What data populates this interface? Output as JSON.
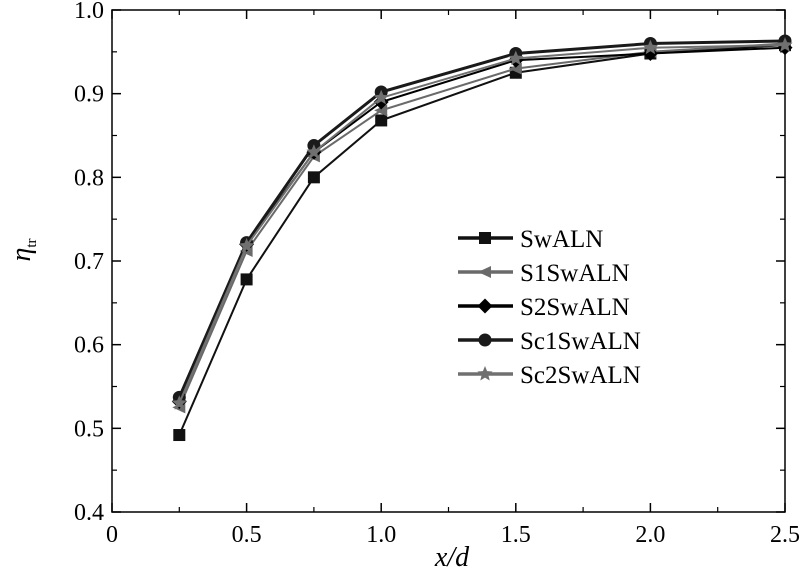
{
  "chart_data": {
    "type": "line",
    "title": "",
    "xlabel": "x/d",
    "ylabel": "η",
    "ylabel_subscript": "tr",
    "xlim": [
      0,
      2.5
    ],
    "ylim": [
      0.4,
      1.0
    ],
    "x_ticks": [
      0,
      0.5,
      1.0,
      1.5,
      2.0,
      2.5
    ],
    "x_tick_labels": [
      "0",
      "0.5",
      "1.0",
      "1.5",
      "2.0",
      "2.5"
    ],
    "y_ticks": [
      0.4,
      0.5,
      0.6,
      0.7,
      0.8,
      0.9,
      1.0
    ],
    "y_tick_labels": [
      "0.4",
      "0.5",
      "0.6",
      "0.7",
      "0.8",
      "0.9",
      "1.0"
    ],
    "grid": false,
    "legend_position": "center-right",
    "x": [
      0.25,
      0.5,
      0.75,
      1.0,
      1.5,
      2.0,
      2.5
    ],
    "series": [
      {
        "name": "SwALN",
        "marker": "square",
        "color": "#111111",
        "values": [
          0.492,
          0.678,
          0.8,
          0.868,
          0.925,
          0.948,
          0.958
        ]
      },
      {
        "name": "S1SwALN",
        "marker": "triangle-left",
        "color": "#6a6a6a",
        "values": [
          0.525,
          0.712,
          0.825,
          0.88,
          0.93,
          0.95,
          0.96
        ]
      },
      {
        "name": "S2SwALN",
        "marker": "diamond",
        "color": "#000000",
        "values": [
          0.532,
          0.72,
          0.83,
          0.89,
          0.94,
          0.948,
          0.955
        ]
      },
      {
        "name": "Sc1SwALN",
        "marker": "circle",
        "color": "#1a1a1a",
        "values": [
          0.537,
          0.722,
          0.838,
          0.902,
          0.948,
          0.96,
          0.963
        ]
      },
      {
        "name": "Sc2SwALN",
        "marker": "star",
        "color": "#707070",
        "values": [
          0.53,
          0.718,
          0.83,
          0.895,
          0.942,
          0.955,
          0.958
        ]
      }
    ]
  }
}
